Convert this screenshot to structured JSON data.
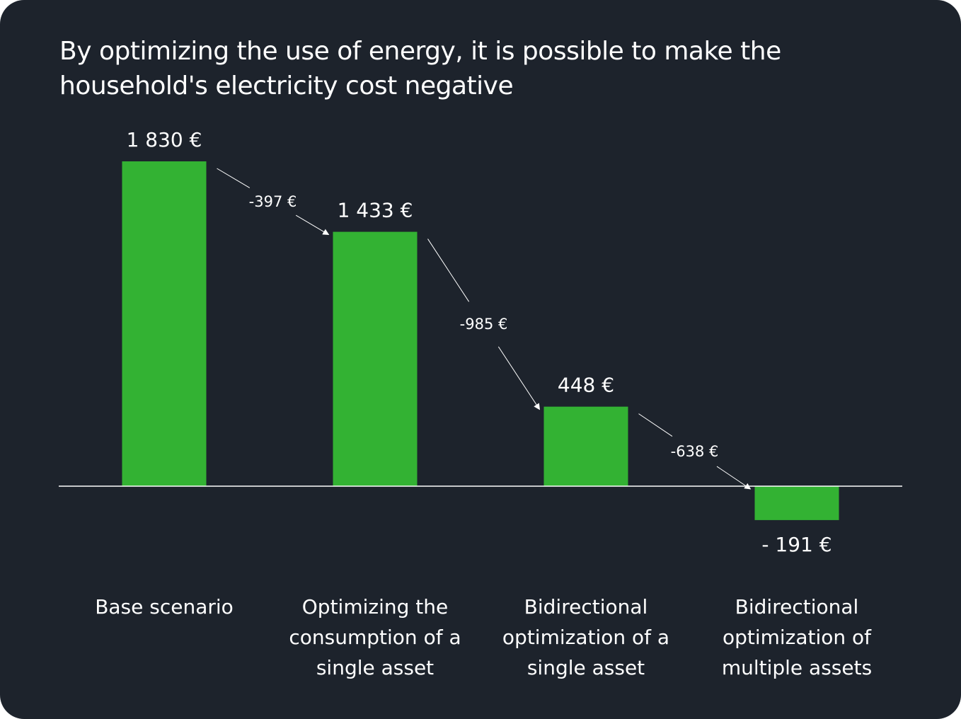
{
  "colors": {
    "background": "#1d232c",
    "bar": "#33b233",
    "text": "#ffffff",
    "axis": "#ffffff"
  },
  "chart_data": {
    "type": "bar",
    "title": "By optimizing the use of energy, it is possible to make the household's electricity cost negative",
    "categories": [
      [
        "Base scenario"
      ],
      [
        "Optimizing the",
        "consumption of a",
        "single asset"
      ],
      [
        "Bidirectional",
        "optimization of a",
        "single asset"
      ],
      [
        "Bidirectional",
        "optimization of",
        "multiple assets"
      ]
    ],
    "values": [
      1830,
      1433,
      448,
      -191
    ],
    "value_labels": [
      "1 830 €",
      "1 433 €",
      "448 €",
      "- 191 €"
    ],
    "deltas": [
      -397,
      -985,
      -638
    ],
    "delta_labels": [
      "-397 €",
      "-985 €",
      "-638 €"
    ],
    "ylim": [
      -191,
      1830
    ],
    "xlabel": "",
    "ylabel": "",
    "grid": false,
    "legend": "none"
  }
}
